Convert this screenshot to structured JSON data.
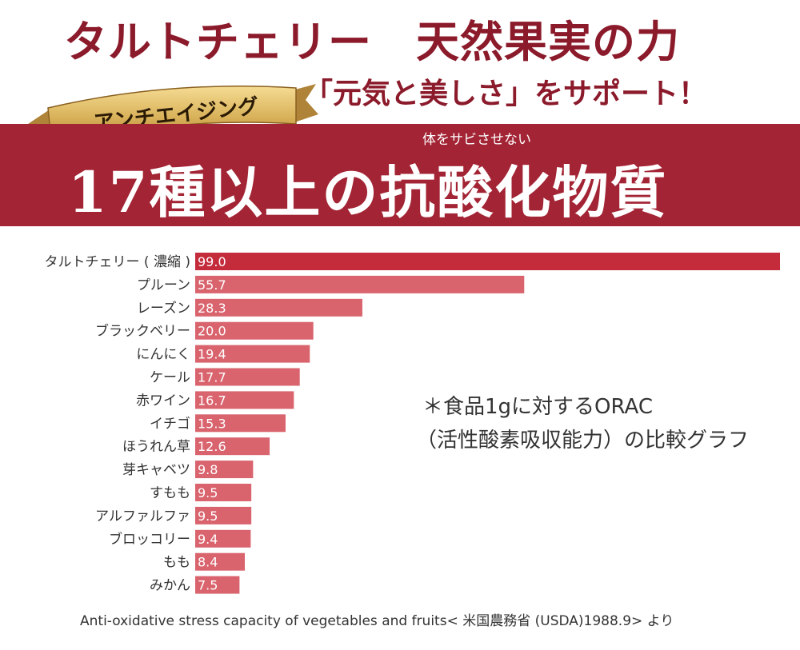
{
  "header": {
    "title": "タルトチェリー　天然果実の力",
    "subtitle": "「元気と美しさ」をサポート！",
    "ribbon": "アンチエイジング",
    "furigana": "体をサビさせない",
    "headline": "17種以上の抗酸化物質"
  },
  "note": {
    "line1": "＊食品1gに対するORAC",
    "line2": "（活性酸素吸収能力）の比較グラフ"
  },
  "source": "Anti-oxidative stress capacity of vegetables and fruits< 米国農務省 (USDA)1988.9> より",
  "colors": {
    "primary": "#a32434",
    "title": "#8b1a2b",
    "top_bar": "#c42c3c",
    "bar": "#d9646e",
    "gold": "#d9b25a"
  },
  "chart_data": {
    "type": "bar",
    "orientation": "horizontal",
    "title": "",
    "xlabel": "",
    "ylabel": "",
    "xlim": [
      0,
      99
    ],
    "grid": false,
    "categories": [
      "タルトチェリー ( 濃縮 )",
      "プルーン",
      "レーズン",
      "ブラックベリー",
      "にんにく",
      "ケール",
      "赤ワイン",
      "イチゴ",
      "ほうれん草",
      "芽キャベツ",
      "すもも",
      "アルファルファ",
      "ブロッコリー",
      "もも",
      "みかん"
    ],
    "value_labels": [
      "99.0",
      "55.7",
      "28.3",
      "20.0",
      "19.4",
      "17.7",
      "16.7",
      "15.3",
      "12.6",
      "9.8",
      "9.5",
      "9.5",
      "9.4",
      "8.4",
      "7.5"
    ],
    "values": [
      99.0,
      55.7,
      28.3,
      20.0,
      19.4,
      17.7,
      16.7,
      15.3,
      12.6,
      9.8,
      9.5,
      9.5,
      9.4,
      8.4,
      7.5
    ]
  }
}
